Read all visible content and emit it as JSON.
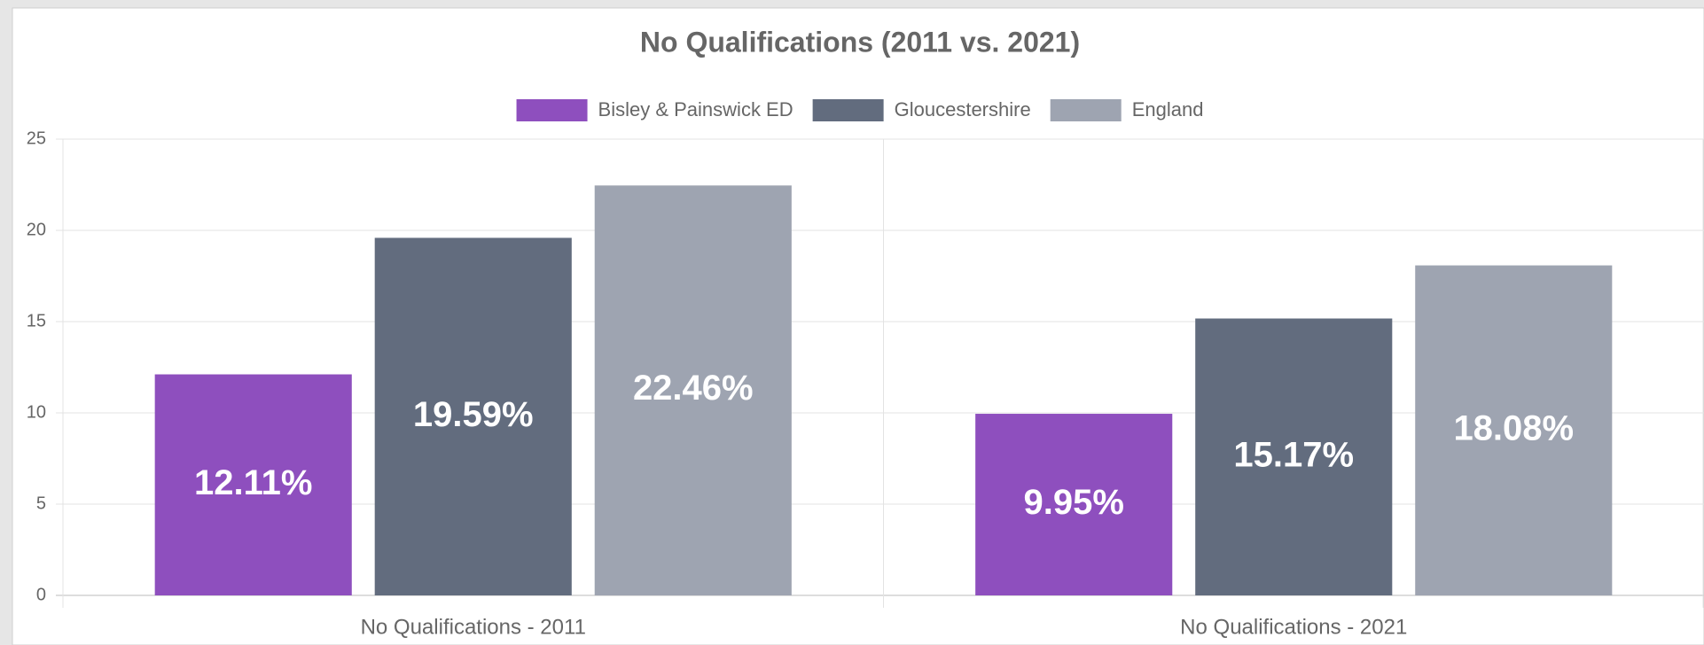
{
  "chart_data": {
    "type": "bar",
    "title": "No Qualifications (2011 vs. 2021)",
    "categories": [
      "No Qualifications - 2011",
      "No Qualifications - 2021"
    ],
    "series": [
      {
        "name": "Bisley & Painswick ED",
        "color": "#8e4fbe",
        "values": [
          12.11,
          9.95
        ],
        "value_labels": [
          "12.11%",
          "9.95%"
        ]
      },
      {
        "name": "Gloucestershire",
        "color": "#626c7e",
        "values": [
          19.59,
          15.17
        ],
        "value_labels": [
          "19.59%",
          "15.17%"
        ]
      },
      {
        "name": "England",
        "color": "#9ea4b1",
        "values": [
          22.46,
          18.08
        ],
        "value_labels": [
          "22.46%",
          "18.08%"
        ]
      }
    ],
    "ylim": [
      0,
      25
    ],
    "yticks": [
      0,
      5,
      10,
      15,
      20,
      25
    ],
    "grid": true,
    "legend": "top"
  }
}
